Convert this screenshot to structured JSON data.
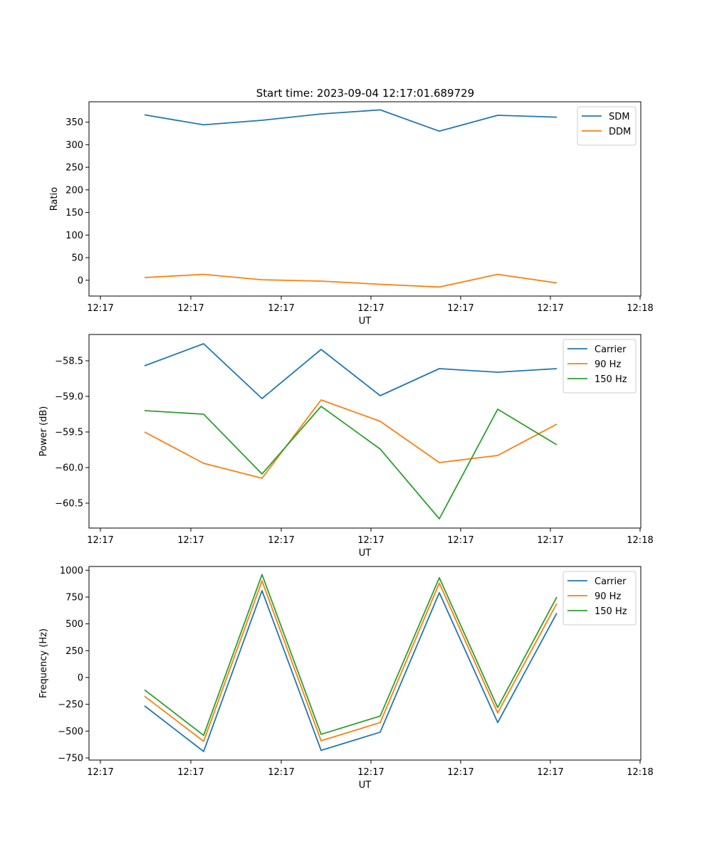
{
  "figure": {
    "title": "Start time: 2023-09-04 12:17:01.689729"
  },
  "chart_data": [
    {
      "type": "line",
      "title": "Start time: 2023-09-04 12:17:01.689729",
      "xlabel": "UT",
      "ylabel": "Ratio",
      "x_ticklabels": [
        "12:17",
        "12:17",
        "12:17",
        "12:17",
        "12:17",
        "12:17",
        "12:17"
      ],
      "x_ticklabels_extra": "12:18",
      "y_ticks": [
        0,
        50,
        100,
        150,
        200,
        250,
        300,
        350
      ],
      "ylim": [
        -35,
        395
      ],
      "legend": "top-right",
      "series": [
        {
          "name": "SDM",
          "color": "#1f77b4",
          "values": [
            366,
            344,
            354,
            368,
            377,
            330,
            365,
            361
          ]
        },
        {
          "name": "DDM",
          "color": "#ff7f0e",
          "values": [
            6,
            13,
            1,
            -2,
            -9,
            -15,
            13,
            -6
          ]
        }
      ]
    },
    {
      "type": "line",
      "xlabel": "UT",
      "ylabel": "Power (dB)",
      "x_ticklabels": [
        "12:17",
        "12:17",
        "12:17",
        "12:17",
        "12:17",
        "12:17",
        "12:17"
      ],
      "x_ticklabels_extra": "12:18",
      "y_ticks": [
        -60.5,
        -60.0,
        -59.5,
        -59.0,
        -58.5
      ],
      "y_ticklabels": [
        "−60.5",
        "−60.0",
        "−59.5",
        "−59.0",
        "−58.5"
      ],
      "ylim": [
        -60.85,
        -58.13
      ],
      "legend": "top-right",
      "series": [
        {
          "name": "Carrier",
          "color": "#1f77b4",
          "values": [
            -58.57,
            -58.26,
            -59.03,
            -58.34,
            -58.99,
            -58.61,
            -58.66,
            -58.61
          ]
        },
        {
          "name": "90 Hz",
          "color": "#ff7f0e",
          "values": [
            -59.5,
            -59.94,
            -60.15,
            -59.05,
            -59.35,
            -59.93,
            -59.83,
            -59.39
          ]
        },
        {
          "name": "150 Hz",
          "color": "#2ca02c",
          "values": [
            -59.2,
            -59.25,
            -60.09,
            -59.14,
            -59.74,
            -60.72,
            -59.18,
            -59.68
          ]
        }
      ]
    },
    {
      "type": "line",
      "xlabel": "UT",
      "ylabel": "Frequency (Hz)",
      "x_ticklabels": [
        "12:17",
        "12:17",
        "12:17",
        "12:17",
        "12:17",
        "12:17",
        "12:17"
      ],
      "x_ticklabels_extra": "12:18",
      "y_ticks": [
        -750,
        -500,
        -250,
        0,
        250,
        500,
        750,
        1000
      ],
      "y_ticklabels": [
        "−750",
        "−500",
        "−250",
        "0",
        "250",
        "500",
        "750",
        "1000"
      ],
      "ylim": [
        -770,
        1035
      ],
      "legend": "top-right",
      "series": [
        {
          "name": "Carrier",
          "color": "#1f77b4",
          "values": [
            -265,
            -690,
            810,
            -680,
            -510,
            790,
            -420,
            600
          ]
        },
        {
          "name": "90 Hz",
          "color": "#ff7f0e",
          "values": [
            -175,
            -595,
            900,
            -590,
            -420,
            880,
            -330,
            690
          ]
        },
        {
          "name": "150 Hz",
          "color": "#2ca02c",
          "values": [
            -115,
            -540,
            960,
            -530,
            -360,
            930,
            -280,
            750
          ]
        }
      ]
    }
  ]
}
